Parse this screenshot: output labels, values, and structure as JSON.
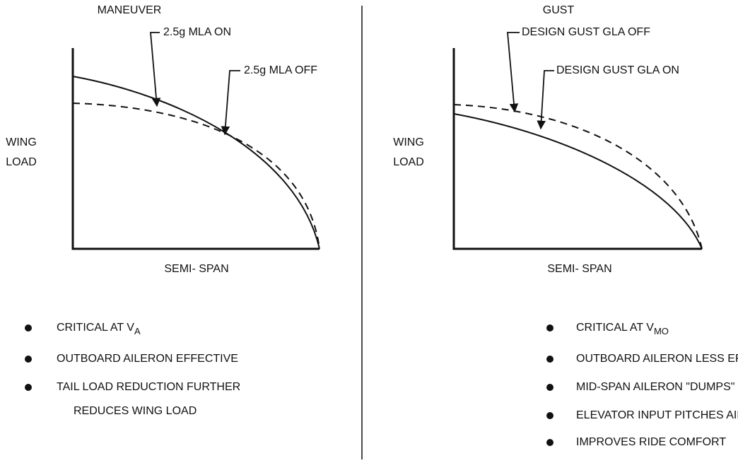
{
  "panels": [
    {
      "title": "MANEUVER",
      "y_label": [
        "WING",
        "LOAD"
      ],
      "x_label": "SEMI- SPAN",
      "curve_labels": [
        "2.5g MLA ON",
        "2.5g MLA OFF"
      ],
      "bullets": [
        {
          "text": "CRITICAL AT V",
          "sub": "A"
        },
        [
          "OUTBOARD AILERON EFFECTIVE"
        ],
        [
          "TAIL LOAD REDUCTION FURTHER",
          "REDUCES WING LOAD"
        ]
      ]
    },
    {
      "title": "GUST",
      "y_label": [
        "WING",
        "LOAD"
      ],
      "x_label": "SEMI- SPAN",
      "curve_labels": [
        "DESIGN GUST GLA OFF",
        "DESIGN GUST GLA ON"
      ],
      "bullets": [
        {
          "text": "CRITICAL AT V",
          "sub": "MO"
        },
        [
          "OUTBOARD AILERON LESS EFFECTIVE"
        ],
        [
          "MID-SPAN AILERON \"DUMPS\" LIFT"
        ],
        [
          "ELEVATOR INPUT  PITCHES AIRPLANE"
        ],
        [
          "IMPROVES RIDE COMFORT"
        ]
      ]
    }
  ]
}
